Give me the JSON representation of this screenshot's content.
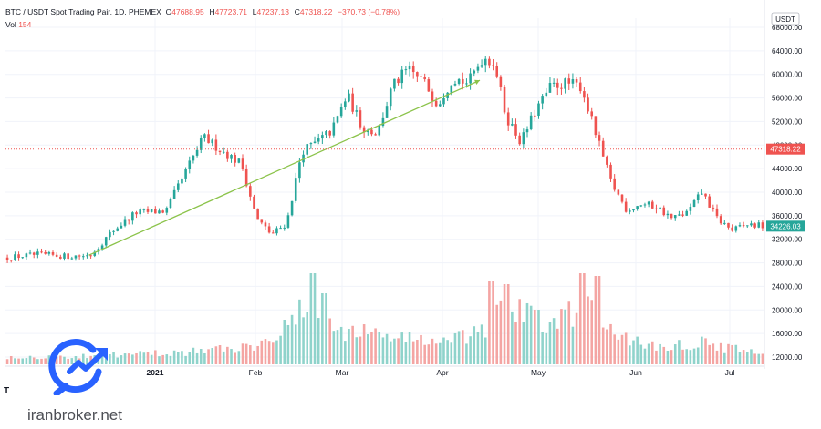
{
  "header": {
    "pair": "BTC / USDT Spot Trading Pair, 1D, PHEMEX",
    "o_label": "O",
    "o_value": "47688.95",
    "h_label": "H",
    "h_value": "47723.71",
    "l_label": "L",
    "l_value": "47237.13",
    "c_label": "C",
    "c_value": "47318.22",
    "change": "−370.73 (−0.78%)",
    "vol_label": "Vol",
    "vol_value": "154"
  },
  "watermark": {
    "text": "iranbroker.net",
    "tv_mark": "T"
  },
  "colors": {
    "up": "#26a69a",
    "down": "#ef5350",
    "vol_up": "#8fd3cb",
    "vol_down": "#f4a5a3",
    "trendline": "#8bc34a",
    "grid": "#f0f3fa",
    "logo": "#2962ff",
    "last_price_line": "#ef5350"
  },
  "chart_data": {
    "type": "candlestick",
    "currency": "USDT",
    "y_ticks": [
      "12000.00",
      "16000.00",
      "20000.00",
      "24000.00",
      "28000.00",
      "32000.00",
      "36000.00",
      "40000.00",
      "44000.00",
      "48000.00",
      "52000.00",
      "56000.00",
      "60000.00",
      "64000.00",
      "68000.00"
    ],
    "ylim": [
      10000,
      70000
    ],
    "x_ticks": [
      "2021",
      "Feb",
      "Mar",
      "Apr",
      "May",
      "Jun",
      "Jul"
    ],
    "last_price": {
      "value": 47318.22,
      "label": "47318.22"
    },
    "current_price": {
      "value": 34226.03,
      "label": "34226.03"
    },
    "trendline": {
      "start": {
        "x": 0.11,
        "y": 29300
      },
      "end": {
        "x": 0.625,
        "y": 59000
      }
    },
    "price_anchors": [
      [
        0.0,
        28900
      ],
      [
        0.04,
        29400
      ],
      [
        0.08,
        29100
      ],
      [
        0.11,
        29300
      ],
      [
        0.14,
        33500
      ],
      [
        0.17,
        36500
      ],
      [
        0.21,
        36800
      ],
      [
        0.24,
        44500
      ],
      [
        0.26,
        49300
      ],
      [
        0.29,
        46500
      ],
      [
        0.31,
        44800
      ],
      [
        0.33,
        35500
      ],
      [
        0.35,
        32800
      ],
      [
        0.37,
        34800
      ],
      [
        0.39,
        47000
      ],
      [
        0.41,
        48500
      ],
      [
        0.43,
        50500
      ],
      [
        0.45,
        56500
      ],
      [
        0.47,
        51000
      ],
      [
        0.49,
        50000
      ],
      [
        0.51,
        58000
      ],
      [
        0.53,
        60800
      ],
      [
        0.55,
        59000
      ],
      [
        0.57,
        55000
      ],
      [
        0.59,
        59500
      ],
      [
        0.61,
        58500
      ],
      [
        0.63,
        63000
      ],
      [
        0.645,
        62000
      ],
      [
        0.66,
        53000
      ],
      [
        0.68,
        48500
      ],
      [
        0.7,
        54000
      ],
      [
        0.72,
        58000
      ],
      [
        0.74,
        58500
      ],
      [
        0.76,
        58000
      ],
      [
        0.78,
        49500
      ],
      [
        0.8,
        41500
      ],
      [
        0.82,
        37000
      ],
      [
        0.84,
        38000
      ],
      [
        0.86,
        37500
      ],
      [
        0.88,
        35500
      ],
      [
        0.9,
        36500
      ],
      [
        0.92,
        40000
      ],
      [
        0.94,
        35500
      ],
      [
        0.96,
        33500
      ],
      [
        0.98,
        34500
      ],
      [
        1.0,
        34226
      ]
    ],
    "volume_anchors": [
      [
        0.0,
        0.1
      ],
      [
        0.1,
        0.1
      ],
      [
        0.22,
        0.15
      ],
      [
        0.32,
        0.22
      ],
      [
        0.4,
        0.7
      ],
      [
        0.44,
        0.45
      ],
      [
        0.5,
        0.38
      ],
      [
        0.58,
        0.28
      ],
      [
        0.63,
        0.4
      ],
      [
        0.66,
        0.75
      ],
      [
        0.72,
        0.45
      ],
      [
        0.76,
        0.75
      ],
      [
        0.8,
        0.4
      ],
      [
        0.86,
        0.22
      ],
      [
        0.92,
        0.28
      ],
      [
        1.0,
        0.12
      ]
    ],
    "volume_peaks": [
      [
        0.405,
        1.0
      ],
      [
        0.42,
        0.78
      ],
      [
        0.64,
        0.92
      ],
      [
        0.66,
        0.88
      ],
      [
        0.76,
        1.0
      ],
      [
        0.78,
        0.97
      ],
      [
        0.7,
        0.6
      ]
    ]
  }
}
